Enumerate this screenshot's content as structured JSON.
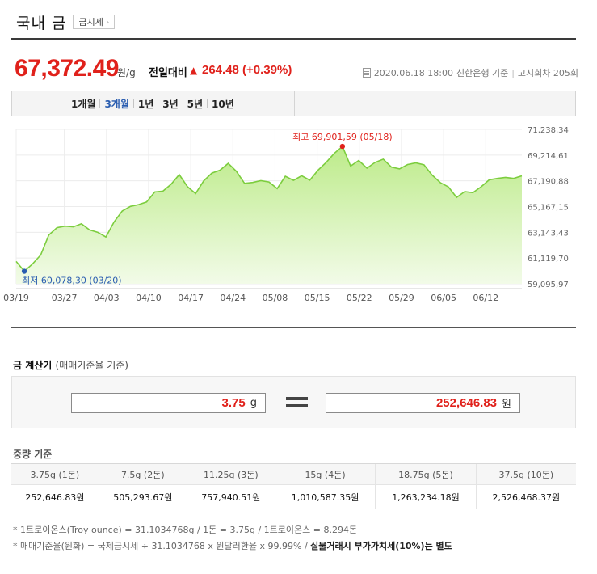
{
  "header": {
    "title": "국내 금",
    "quote_button": "금시세",
    "quote_arrow": "›"
  },
  "price": {
    "value": "67,372.49",
    "unit": "원/g",
    "compare_label": "전일대비",
    "change_arrow": "▲",
    "change": "264.48 (+0.39%)"
  },
  "meta": {
    "date": "2020.06.18 18:00",
    "bank": "신한은행 기준",
    "sep": "|",
    "round": "고시회차 205회"
  },
  "tabs": [
    {
      "label": "1개월"
    },
    {
      "label": "3개월"
    },
    {
      "label": "1년"
    },
    {
      "label": "3년"
    },
    {
      "label": "5년"
    },
    {
      "label": "10년"
    }
  ],
  "active_tab": "3개월",
  "chart_data": {
    "type": "area",
    "x_tick_labels": [
      "03/19",
      "03/27",
      "04/03",
      "04/10",
      "04/17",
      "04/24",
      "05/08",
      "05/15",
      "05/22",
      "05/29",
      "06/05",
      "06/12"
    ],
    "y_tick_labels": [
      "71,238,34",
      "69,214,61",
      "67,190,88",
      "65,167,15",
      "63,143,43",
      "61,119,70",
      "59,095,97"
    ],
    "ylim": [
      59095.97,
      71238.34
    ],
    "grid": true,
    "colors": {
      "line": "#7ccd3e",
      "fill_top": "#bdeb8a",
      "fill_bottom": "#f2fbe8",
      "marker_high": "#e0211b",
      "marker_low": "#2a5db0"
    },
    "high": {
      "label": "최고",
      "value_text": "69,901,59",
      "date_text": "(05/18)",
      "index": 40
    },
    "low": {
      "label": "최저",
      "value_text": "60,078,30",
      "date_text": "(03/20)",
      "index": 1
    },
    "values": [
      60850,
      60080,
      60650,
      61350,
      62930,
      63510,
      63630,
      63570,
      63810,
      63330,
      63140,
      62780,
      63960,
      64820,
      65180,
      65320,
      65530,
      66320,
      66380,
      66920,
      67680,
      66740,
      66190,
      67190,
      67800,
      68030,
      68560,
      67940,
      66990,
      67060,
      67200,
      67100,
      66580,
      67550,
      67230,
      67590,
      67240,
      68020,
      68640,
      69350,
      69900,
      68350,
      68790,
      68190,
      68640,
      68890,
      68270,
      68130,
      68470,
      68600,
      68450,
      67640,
      67050,
      66710,
      65890,
      66350,
      66260,
      66720,
      67270,
      67380,
      67460,
      67380,
      67580
    ]
  },
  "calculator": {
    "title": "금 계산기",
    "subtitle": "(매매기준율 기준)",
    "gram_value": "3.75",
    "gram_unit": "g",
    "won_value": "252,646.83",
    "won_unit": "원"
  },
  "weights": {
    "title": "중량 기준",
    "headers": [
      "3.75g (1돈)",
      "7.5g (2돈)",
      "11.25g (3돈)",
      "15g (4돈)",
      "18.75g (5돈)",
      "37.5g (10돈)"
    ],
    "values": [
      "252,646.83원",
      "505,293.67원",
      "757,940.51원",
      "1,010,587.35원",
      "1,263,234.18원",
      "2,526,468.37원"
    ]
  },
  "notes": {
    "line1": "* 1트로이온스(Troy ounce) = 31.1034768g / 1돈 = 3.75g / 1트로이온스 = 8.294돈",
    "line2_a": "* 매매기준율(원화) = 국제금시세 ÷ 31.1034768 x 원달러환율 x 99.99% / ",
    "line2_b": "실물거래시 부가가치세(10%)는 별도"
  }
}
